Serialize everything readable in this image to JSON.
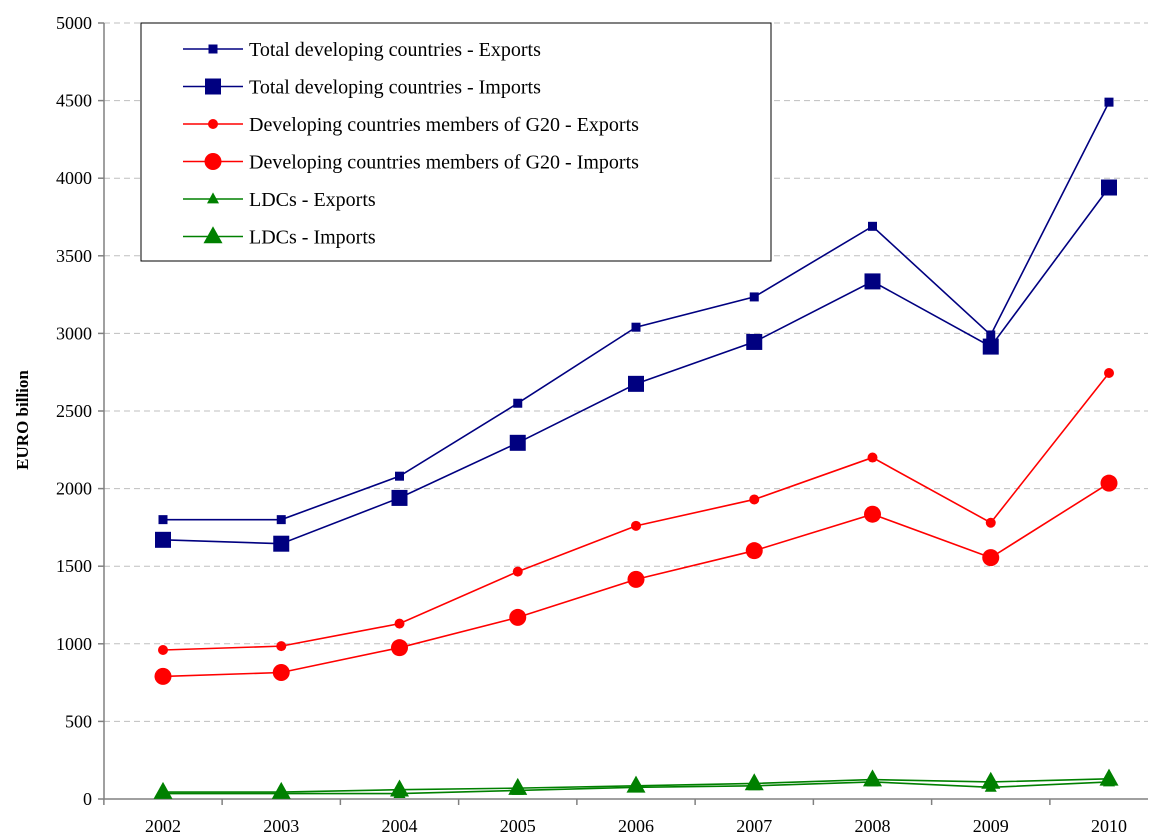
{
  "chart_data": {
    "type": "line",
    "title": "",
    "xlabel": "",
    "ylabel": "EURO billion",
    "ylim": [
      0,
      5000
    ],
    "yticks": [
      0,
      500,
      1000,
      1500,
      2000,
      2500,
      3000,
      3500,
      4000,
      4500,
      5000
    ],
    "grid": "horizontal dashed",
    "legend_position": "top-left",
    "categories": [
      "2002",
      "2003",
      "2004",
      "2005",
      "2006",
      "2007",
      "2008",
      "2009",
      "2010"
    ],
    "series": [
      {
        "name": "Total developing countries - Exports",
        "color": "#000080",
        "marker": "square-small",
        "values": [
          1800,
          1800,
          2080,
          2550,
          3040,
          3235,
          3690,
          2990,
          4490
        ]
      },
      {
        "name": "Total developing countries - Imports",
        "color": "#000080",
        "marker": "square-large",
        "values": [
          1670,
          1645,
          1940,
          2295,
          2675,
          2945,
          3335,
          2915,
          3940
        ]
      },
      {
        "name": "Developing countries members of G20 - Exports",
        "color": "#ff0000",
        "marker": "circle-small",
        "values": [
          960,
          985,
          1130,
          1465,
          1760,
          1930,
          2200,
          1780,
          2745
        ]
      },
      {
        "name": "Developing countries members of G20 - Imports",
        "color": "#ff0000",
        "marker": "circle-large",
        "values": [
          790,
          815,
          975,
          1170,
          1415,
          1600,
          1835,
          1555,
          2035
        ]
      },
      {
        "name": "LDCs - Exports",
        "color": "#008000",
        "marker": "triangle-small",
        "values": [
          35,
          35,
          35,
          55,
          75,
          85,
          110,
          75,
          110
        ]
      },
      {
        "name": "LDCs - Imports",
        "color": "#008000",
        "marker": "triangle-large",
        "values": [
          45,
          45,
          60,
          70,
          85,
          100,
          125,
          110,
          130
        ]
      }
    ]
  }
}
